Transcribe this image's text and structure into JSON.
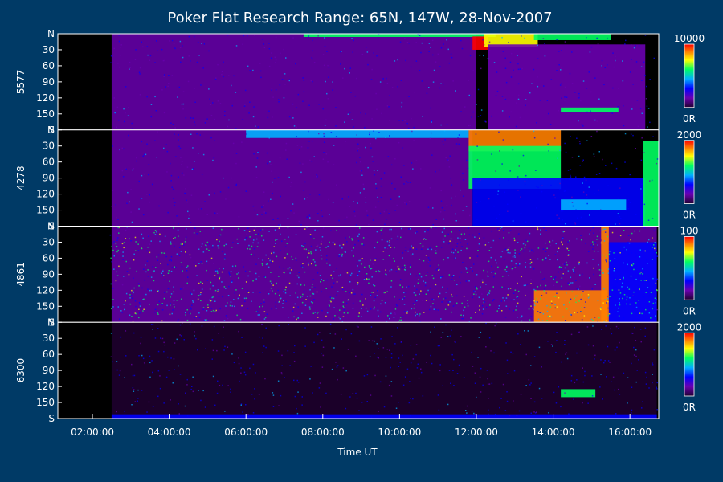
{
  "chart_data": {
    "type": "heatmap",
    "title": "Poker Flat Research Range: 65N, 147W, 28-Nov-2007",
    "xlabel": "Time UT",
    "x_ticks": [
      "02:00:00",
      "04:00:00",
      "06:00:00",
      "08:00:00",
      "10:00:00",
      "12:00:00",
      "14:00:00",
      "16:00:00"
    ],
    "xlim_hours": [
      1.1,
      16.75
    ],
    "y_ticks": [
      "N",
      "30",
      "60",
      "90",
      "120",
      "150",
      "S"
    ],
    "y_values": [
      0,
      30,
      60,
      90,
      120,
      150,
      180
    ],
    "colorscale": [
      "#200030",
      "#6a00b0",
      "#0000ff",
      "#00b0ff",
      "#00ff60",
      "#ffff00",
      "#ff8000",
      "#ff0000"
    ],
    "panels": [
      {
        "name": "5577",
        "cbar_max": "10000",
        "cbar_min": "0R",
        "data_start_hour": 2.45,
        "blobs": [
          {
            "t0": 2.5,
            "t1": 12.0,
            "y0": 0,
            "y1": 180,
            "level": 0.12
          },
          {
            "t0": 7.5,
            "t1": 12.5,
            "y0": 0,
            "y1": 6,
            "level": 0.5
          },
          {
            "t0": 11.9,
            "t1": 12.3,
            "y0": 5,
            "y1": 30,
            "level": 0.95
          },
          {
            "t0": 12.2,
            "t1": 13.6,
            "y0": 0,
            "y1": 25,
            "level": 0.75
          },
          {
            "t0": 13.5,
            "t1": 15.5,
            "y0": 0,
            "y1": 12,
            "level": 0.6
          },
          {
            "t0": 12.3,
            "t1": 16.4,
            "y0": 20,
            "y1": 180,
            "level": 0.2
          },
          {
            "t0": 14.2,
            "t1": 15.7,
            "y0": 138,
            "y1": 146,
            "level": 0.5
          }
        ]
      },
      {
        "name": "4278",
        "cbar_max": "2000",
        "cbar_min": "0R",
        "data_start_hour": 2.45,
        "blobs": [
          {
            "t0": 2.5,
            "t1": 11.9,
            "y0": 0,
            "y1": 180,
            "level": 0.12
          },
          {
            "t0": 6.0,
            "t1": 11.8,
            "y0": 0,
            "y1": 15,
            "level": 0.45
          },
          {
            "t0": 11.8,
            "t1": 14.2,
            "y0": 0,
            "y1": 40,
            "level": 0.92
          },
          {
            "t0": 11.8,
            "t1": 14.2,
            "y0": 30,
            "y1": 110,
            "level": 0.5
          },
          {
            "t0": 11.9,
            "t1": 16.4,
            "y0": 90,
            "y1": 180,
            "level": 0.25
          },
          {
            "t0": 14.2,
            "t1": 15.9,
            "y0": 130,
            "y1": 150,
            "level": 0.45
          },
          {
            "t0": 16.35,
            "t1": 16.75,
            "y0": 20,
            "y1": 180,
            "level": 0.55
          }
        ]
      },
      {
        "name": "4861",
        "cbar_max": "100",
        "cbar_min": "0R",
        "data_start_hour": 2.45,
        "blobs": [
          {
            "t0": 2.5,
            "t1": 16.7,
            "y0": 0,
            "y1": 180,
            "level": 0.15
          },
          {
            "t0": 13.5,
            "t1": 15.4,
            "y0": 120,
            "y1": 180,
            "level": 0.85
          },
          {
            "t0": 15.25,
            "t1": 15.45,
            "y0": 0,
            "y1": 180,
            "level": 0.9
          },
          {
            "t0": 15.45,
            "t1": 16.7,
            "y0": 30,
            "y1": 180,
            "level": 0.35
          }
        ]
      },
      {
        "name": "6300",
        "cbar_max": "2000",
        "cbar_min": "0R",
        "data_start_hour": 2.45,
        "blobs": [
          {
            "t0": 2.5,
            "t1": 16.7,
            "y0": 0,
            "y1": 180,
            "level": 0.03
          },
          {
            "t0": 2.5,
            "t1": 16.7,
            "y0": 172,
            "y1": 180,
            "level": 0.25
          },
          {
            "t0": 14.2,
            "t1": 15.1,
            "y0": 125,
            "y1": 140,
            "level": 0.55
          }
        ]
      }
    ]
  }
}
